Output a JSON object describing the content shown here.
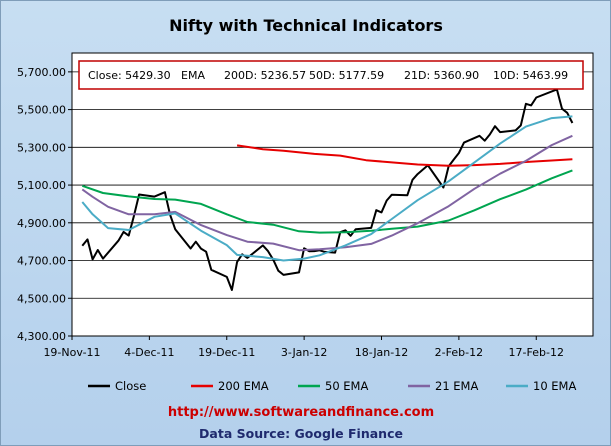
{
  "chart_data": {
    "type": "line",
    "title": "Nifty with Technical Indicators",
    "info_box": {
      "close": "Close: 5429.30",
      "ema": "EMA",
      "ema200": "200D: 5236.57",
      "ema50": "50D: 5177.59",
      "ema21": "21D: 5360.90",
      "ema10": "10D: 5463.99"
    },
    "x_ticks": [
      "19-Nov-11",
      "4-Dec-11",
      "19-Dec-11",
      "3-Jan-12",
      "18-Jan-12",
      "2-Feb-12",
      "17-Feb-12"
    ],
    "y_ticks": [
      "4,300.00",
      "4,500.00",
      "4,700.00",
      "4,900.00",
      "5,100.00",
      "5,300.00",
      "5,500.00",
      "5,700.00"
    ],
    "ylim": [
      4300,
      5800
    ],
    "xlim": [
      "2011-11-19",
      "2012-02-28"
    ],
    "grid": true,
    "legend_position": "bottom",
    "series": [
      {
        "name": "Close",
        "color": "#000000",
        "points": [
          [
            "2011-11-21",
            4778
          ],
          [
            "2011-11-22",
            4812
          ],
          [
            "2011-11-23",
            4706
          ],
          [
            "2011-11-24",
            4756
          ],
          [
            "2011-11-25",
            4710
          ],
          [
            "2011-11-28",
            4805
          ],
          [
            "2011-11-29",
            4852
          ],
          [
            "2011-11-30",
            4832
          ],
          [
            "2011-12-01",
            4936
          ],
          [
            "2011-12-02",
            5050
          ],
          [
            "2011-12-05",
            5039
          ],
          [
            "2011-12-07",
            5062
          ],
          [
            "2011-12-08",
            4944
          ],
          [
            "2011-12-09",
            4866
          ],
          [
            "2011-12-12",
            4764
          ],
          [
            "2011-12-13",
            4800
          ],
          [
            "2011-12-14",
            4763
          ],
          [
            "2011-12-15",
            4747
          ],
          [
            "2011-12-16",
            4651
          ],
          [
            "2011-12-19",
            4613
          ],
          [
            "2011-12-20",
            4544
          ],
          [
            "2011-12-21",
            4693
          ],
          [
            "2011-12-22",
            4733
          ],
          [
            "2011-12-23",
            4714
          ],
          [
            "2011-12-26",
            4780
          ],
          [
            "2011-12-27",
            4750
          ],
          [
            "2011-12-28",
            4705
          ],
          [
            "2011-12-29",
            4646
          ],
          [
            "2011-12-30",
            4624
          ],
          [
            "2012-01-02",
            4637
          ],
          [
            "2012-01-03",
            4765
          ],
          [
            "2012-01-04",
            4749
          ],
          [
            "2012-01-05",
            4750
          ],
          [
            "2012-01-06",
            4754
          ],
          [
            "2012-01-07",
            4746
          ],
          [
            "2012-01-09",
            4742
          ],
          [
            "2012-01-10",
            4850
          ],
          [
            "2012-01-11",
            4860
          ],
          [
            "2012-01-12",
            4831
          ],
          [
            "2012-01-13",
            4866
          ],
          [
            "2012-01-16",
            4873
          ],
          [
            "2012-01-17",
            4967
          ],
          [
            "2012-01-18",
            4955
          ],
          [
            "2012-01-19",
            5018
          ],
          [
            "2012-01-20",
            5049
          ],
          [
            "2012-01-23",
            5046
          ],
          [
            "2012-01-24",
            5128
          ],
          [
            "2012-01-25",
            5158
          ],
          [
            "2012-01-27",
            5205
          ],
          [
            "2012-01-30",
            5087
          ],
          [
            "2012-01-31",
            5199
          ],
          [
            "2012-02-01",
            5235
          ],
          [
            "2012-02-02",
            5270
          ],
          [
            "2012-02-03",
            5325
          ],
          [
            "2012-02-06",
            5361
          ],
          [
            "2012-02-07",
            5335
          ],
          [
            "2012-02-08",
            5368
          ],
          [
            "2012-02-09",
            5412
          ],
          [
            "2012-02-10",
            5381
          ],
          [
            "2012-02-13",
            5390
          ],
          [
            "2012-02-14",
            5416
          ],
          [
            "2012-02-15",
            5531
          ],
          [
            "2012-02-16",
            5522
          ],
          [
            "2012-02-17",
            5564
          ],
          [
            "2012-02-21",
            5607
          ],
          [
            "2012-02-22",
            5505
          ],
          [
            "2012-02-23",
            5483
          ],
          [
            "2012-02-24",
            5429
          ]
        ]
      },
      {
        "name": "200 EMA",
        "color": "#e60000",
        "points": [
          [
            "2011-12-21",
            5310
          ],
          [
            "2011-12-26",
            5290
          ],
          [
            "2011-12-30",
            5282
          ],
          [
            "2012-01-05",
            5265
          ],
          [
            "2012-01-10",
            5256
          ],
          [
            "2012-01-15",
            5232
          ],
          [
            "2012-01-20",
            5220
          ],
          [
            "2012-01-25",
            5209
          ],
          [
            "2012-01-31",
            5202
          ],
          [
            "2012-02-05",
            5206
          ],
          [
            "2012-02-10",
            5212
          ],
          [
            "2012-02-15",
            5222
          ],
          [
            "2012-02-20",
            5230
          ],
          [
            "2012-02-24",
            5237
          ]
        ]
      },
      {
        "name": "50 EMA",
        "color": "#00a550",
        "points": [
          [
            "2011-11-21",
            5096
          ],
          [
            "2011-11-25",
            5058
          ],
          [
            "2011-11-30",
            5040
          ],
          [
            "2011-12-05",
            5026
          ],
          [
            "2011-12-09",
            5023
          ],
          [
            "2011-12-14",
            5000
          ],
          [
            "2011-12-19",
            4945
          ],
          [
            "2011-12-23",
            4904
          ],
          [
            "2011-12-28",
            4890
          ],
          [
            "2012-01-02",
            4855
          ],
          [
            "2012-01-06",
            4848
          ],
          [
            "2012-01-11",
            4850
          ],
          [
            "2012-01-16",
            4858
          ],
          [
            "2012-01-20",
            4868
          ],
          [
            "2012-01-25",
            4880
          ],
          [
            "2012-01-31",
            4912
          ],
          [
            "2012-02-05",
            4966
          ],
          [
            "2012-02-10",
            5025
          ],
          [
            "2012-02-15",
            5076
          ],
          [
            "2012-02-20",
            5136
          ],
          [
            "2012-02-24",
            5178
          ]
        ]
      },
      {
        "name": "21 EMA",
        "color": "#8064a2",
        "points": [
          [
            "2011-11-21",
            5077
          ],
          [
            "2011-11-23",
            5038
          ],
          [
            "2011-11-26",
            4985
          ],
          [
            "2011-11-30",
            4945
          ],
          [
            "2011-12-05",
            4945
          ],
          [
            "2011-12-09",
            4958
          ],
          [
            "2011-12-14",
            4888
          ],
          [
            "2011-12-19",
            4835
          ],
          [
            "2011-12-23",
            4800
          ],
          [
            "2011-12-28",
            4790
          ],
          [
            "2012-01-02",
            4755
          ],
          [
            "2012-01-06",
            4760
          ],
          [
            "2012-01-11",
            4770
          ],
          [
            "2012-01-16",
            4788
          ],
          [
            "2012-01-20",
            4832
          ],
          [
            "2012-01-25",
            4898
          ],
          [
            "2012-01-31",
            4988
          ],
          [
            "2012-02-05",
            5080
          ],
          [
            "2012-02-10",
            5160
          ],
          [
            "2012-02-15",
            5228
          ],
          [
            "2012-02-20",
            5312
          ],
          [
            "2012-02-24",
            5361
          ]
        ]
      },
      {
        "name": "10 EMA",
        "color": "#4bacc6",
        "points": [
          [
            "2011-11-21",
            5010
          ],
          [
            "2011-11-23",
            4945
          ],
          [
            "2011-11-26",
            4872
          ],
          [
            "2011-11-30",
            4862
          ],
          [
            "2011-12-05",
            4932
          ],
          [
            "2011-12-09",
            4950
          ],
          [
            "2011-12-14",
            4858
          ],
          [
            "2011-12-19",
            4782
          ],
          [
            "2011-12-21",
            4730
          ],
          [
            "2011-12-26",
            4718
          ],
          [
            "2011-12-30",
            4700
          ],
          [
            "2012-01-03",
            4710
          ],
          [
            "2012-01-06",
            4728
          ],
          [
            "2012-01-11",
            4780
          ],
          [
            "2012-01-16",
            4840
          ],
          [
            "2012-01-20",
            4920
          ],
          [
            "2012-01-25",
            5020
          ],
          [
            "2012-01-31",
            5120
          ],
          [
            "2012-02-05",
            5220
          ],
          [
            "2012-02-10",
            5320
          ],
          [
            "2012-02-15",
            5410
          ],
          [
            "2012-02-20",
            5455
          ],
          [
            "2012-02-24",
            5464
          ]
        ]
      }
    ],
    "legend": [
      {
        "label": "Close",
        "color": "#000000"
      },
      {
        "label": "200 EMA",
        "color": "#e60000"
      },
      {
        "label": "50 EMA",
        "color": "#00a550"
      },
      {
        "label": "21 EMA",
        "color": "#8064a2"
      },
      {
        "label": "10 EMA",
        "color": "#4bacc6"
      }
    ],
    "url": "http://www.softwareandfinance.com",
    "source": "Data Source: Google Finance"
  }
}
